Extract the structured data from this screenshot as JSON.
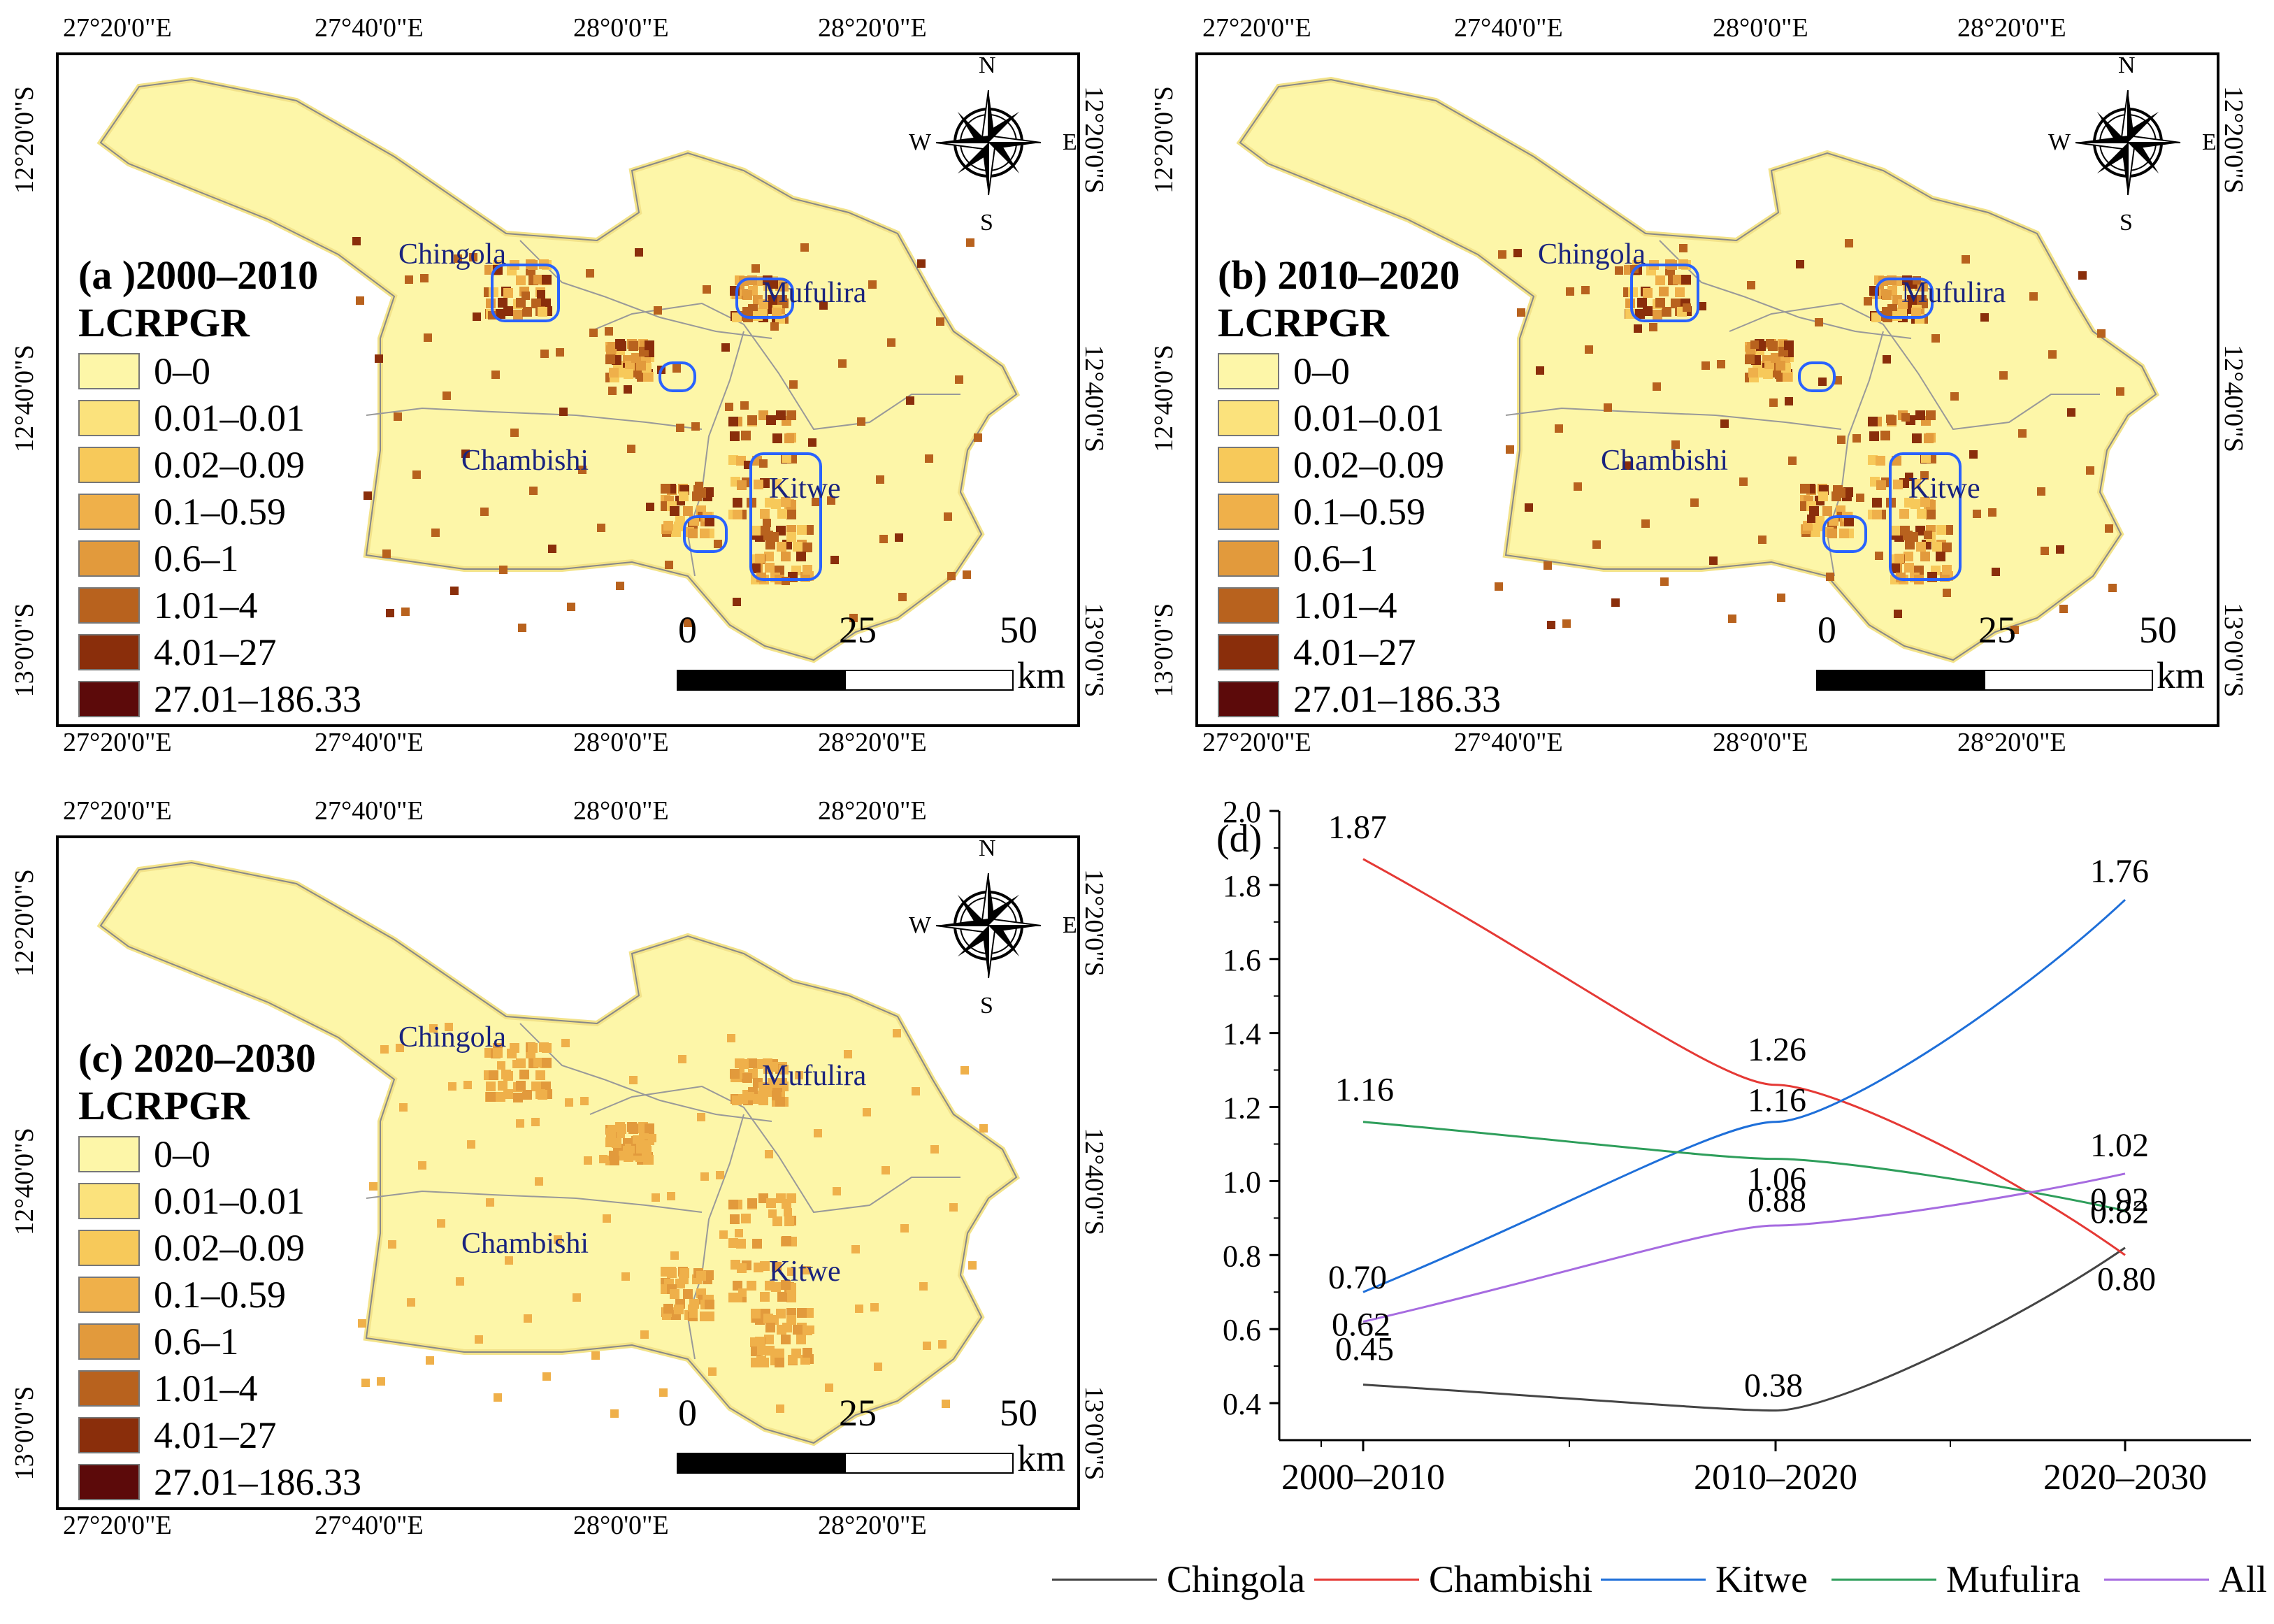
{
  "lon_ticks": [
    "27°20'0\"E",
    "27°40'0\"E",
    "28°0'0\"E",
    "28°20'0\"E"
  ],
  "lat_ticks": [
    "12°20'0\"S",
    "12°40'0\"S",
    "13°0'0\"S"
  ],
  "legend_title": "LCRPGR",
  "legend_classes": [
    {
      "label": "0–0",
      "color": "#fdf6a8"
    },
    {
      "label": "0.01–0.01",
      "color": "#fbe27c"
    },
    {
      "label": "0.02–0.09",
      "color": "#f7c95a"
    },
    {
      "label": "0.1–0.59",
      "color": "#efb04a"
    },
    {
      "label": "0.6–1",
      "color": "#e29a3c"
    },
    {
      "label": "1.01–4",
      "color": "#b8621e"
    },
    {
      "label": "4.01–27",
      "color": "#8a2e0b"
    },
    {
      "label": "27.01–186.33",
      "color": "#5c0a0a"
    }
  ],
  "cities": [
    "Chingola",
    "Mufulira",
    "Chambishi",
    "Kitwe"
  ],
  "scale": {
    "zero": "0",
    "mid": "25",
    "max": "50",
    "unit": "km"
  },
  "compass": {
    "n": "N",
    "s": "S",
    "e": "E",
    "w": "W"
  },
  "panels": [
    {
      "title": "(a )2000–2010"
    },
    {
      "title": "(b) 2010–2020"
    },
    {
      "title": "(c) 2020–2030"
    }
  ],
  "colors": {
    "boundary_outline": "#2962ff",
    "map_fill": "#fdf6a8",
    "map_edge": "#f3e38a"
  },
  "chart_data": {
    "type": "line",
    "panel_label": "(d)",
    "categories": [
      "2000–2010",
      "2010–2020",
      "2020–2030"
    ],
    "ylim": [
      0.3,
      2.0
    ],
    "yticks": [
      "0.4",
      "0.6",
      "0.8",
      "1.0",
      "1.2",
      "1.4",
      "1.6",
      "1.8",
      "2.0"
    ],
    "series": [
      {
        "name": "Chingola",
        "values": [
          0.45,
          0.38,
          0.82
        ],
        "color": "#444444",
        "labels": [
          "0.45",
          "0.38",
          "0.82"
        ]
      },
      {
        "name": "Chambishi",
        "values": [
          1.87,
          1.26,
          0.8
        ],
        "color": "#e53935",
        "labels": [
          "1.87",
          "1.26",
          "0.80"
        ]
      },
      {
        "name": "Kitwe",
        "values": [
          0.7,
          1.16,
          1.76
        ],
        "color": "#1e6fd9",
        "labels": [
          "0.70",
          "1.16",
          "1.76"
        ]
      },
      {
        "name": "Mufulira",
        "values": [
          1.16,
          1.06,
          0.92
        ],
        "color": "#2e9e5b",
        "labels": [
          "1.16",
          "1.06",
          "0.92"
        ]
      },
      {
        "name": "All",
        "values": [
          0.62,
          0.88,
          1.02
        ],
        "color": "#a66be0",
        "labels": [
          "0.62",
          "0.88",
          "1.02"
        ]
      }
    ]
  }
}
